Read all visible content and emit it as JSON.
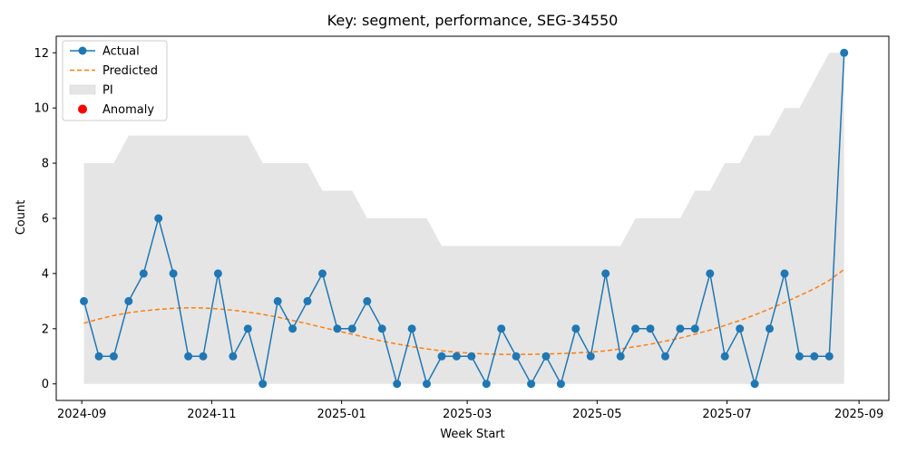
{
  "chart_data": {
    "type": "line",
    "title": "Key: segment, performance, SEG-34550",
    "xlabel": "Week Start",
    "ylabel": "Count",
    "x_axis_type": "date",
    "xlim": [
      "2024-08-20",
      "2025-09-15"
    ],
    "ylim": [
      -0.6,
      12.6
    ],
    "x_ticks": [
      {
        "date": "2024-09-01",
        "label": "2024-09"
      },
      {
        "date": "2024-11-01",
        "label": "2024-11"
      },
      {
        "date": "2025-01-01",
        "label": "2025-01"
      },
      {
        "date": "2025-03-01",
        "label": "2025-03"
      },
      {
        "date": "2025-05-01",
        "label": "2025-05"
      },
      {
        "date": "2025-07-01",
        "label": "2025-07"
      },
      {
        "date": "2025-09-01",
        "label": "2025-09"
      }
    ],
    "y_ticks": [
      0,
      2,
      4,
      6,
      8,
      10,
      12
    ],
    "grid": false,
    "legend": {
      "position": "top-left",
      "entries": [
        {
          "label": "Actual",
          "kind": "line-marker",
          "color": "#1f77b4"
        },
        {
          "label": "Predicted",
          "kind": "dashed-line",
          "color": "#ff7f0e"
        },
        {
          "label": "PI",
          "kind": "patch",
          "color": "#e5e5e5"
        },
        {
          "label": "Anomaly",
          "kind": "dot",
          "color": "#ff0000"
        }
      ]
    },
    "x": [
      "2024-09-02",
      "2024-09-09",
      "2024-09-16",
      "2024-09-23",
      "2024-09-30",
      "2024-10-07",
      "2024-10-14",
      "2024-10-21",
      "2024-10-28",
      "2024-11-04",
      "2024-11-11",
      "2024-11-18",
      "2024-11-25",
      "2024-12-02",
      "2024-12-09",
      "2024-12-16",
      "2024-12-23",
      "2024-12-30",
      "2025-01-06",
      "2025-01-13",
      "2025-01-20",
      "2025-01-27",
      "2025-02-03",
      "2025-02-10",
      "2025-02-17",
      "2025-02-24",
      "2025-03-03",
      "2025-03-10",
      "2025-03-17",
      "2025-03-24",
      "2025-03-31",
      "2025-04-07",
      "2025-04-14",
      "2025-04-21",
      "2025-04-28",
      "2025-05-05",
      "2025-05-12",
      "2025-05-19",
      "2025-05-26",
      "2025-06-02",
      "2025-06-09",
      "2025-06-16",
      "2025-06-23",
      "2025-06-30",
      "2025-07-07",
      "2025-07-14",
      "2025-07-21",
      "2025-07-28",
      "2025-08-04",
      "2025-08-11",
      "2025-08-18",
      "2025-08-25"
    ],
    "series": [
      {
        "name": "Actual",
        "color": "#1f77b4",
        "values": [
          3,
          1,
          1,
          3,
          4,
          6,
          4,
          1,
          1,
          4,
          1,
          2,
          0,
          3,
          2,
          3,
          4,
          2,
          2,
          3,
          2,
          0,
          2,
          0,
          1,
          1,
          1,
          0,
          2,
          1,
          0,
          1,
          0,
          2,
          1,
          4,
          1,
          2,
          2,
          1,
          2,
          2,
          4,
          1,
          2,
          0,
          2,
          4,
          1,
          1,
          1,
          12
        ]
      },
      {
        "name": "Predicted",
        "color": "#ff7f0e",
        "values": [
          2.2,
          2.35,
          2.48,
          2.58,
          2.65,
          2.7,
          2.74,
          2.76,
          2.75,
          2.72,
          2.67,
          2.6,
          2.52,
          2.42,
          2.3,
          2.18,
          2.05,
          1.92,
          1.8,
          1.67,
          1.55,
          1.45,
          1.35,
          1.27,
          1.2,
          1.15,
          1.11,
          1.08,
          1.07,
          1.07,
          1.07,
          1.08,
          1.1,
          1.12,
          1.15,
          1.2,
          1.27,
          1.35,
          1.44,
          1.55,
          1.66,
          1.8,
          1.95,
          2.12,
          2.3,
          2.5,
          2.72,
          2.95,
          3.2,
          3.45,
          3.75,
          4.15
        ]
      },
      {
        "name": "PI",
        "color": "#e5e5e5",
        "lower": [
          0,
          0,
          0,
          0,
          0,
          0,
          0,
          0,
          0,
          0,
          0,
          0,
          0,
          0,
          0,
          0,
          0,
          0,
          0,
          0,
          0,
          0,
          0,
          0,
          0,
          0,
          0,
          0,
          0,
          0,
          0,
          0,
          0,
          0,
          0,
          0,
          0,
          0,
          0,
          0,
          0,
          0,
          0,
          0,
          0,
          0,
          0,
          0,
          0,
          0,
          0,
          0
        ],
        "upper": [
          8,
          8,
          8,
          9,
          9,
          9,
          9,
          9,
          9,
          9,
          9,
          9,
          8,
          8,
          8,
          8,
          7,
          7,
          7,
          6,
          6,
          6,
          6,
          6,
          5,
          5,
          5,
          5,
          5,
          5,
          5,
          5,
          5,
          5,
          5,
          5,
          5,
          6,
          6,
          6,
          6,
          7,
          7,
          8,
          8,
          9,
          9,
          10,
          10,
          11,
          12,
          12
        ]
      },
      {
        "name": "Anomaly",
        "color": "#ff0000",
        "points": []
      }
    ]
  }
}
